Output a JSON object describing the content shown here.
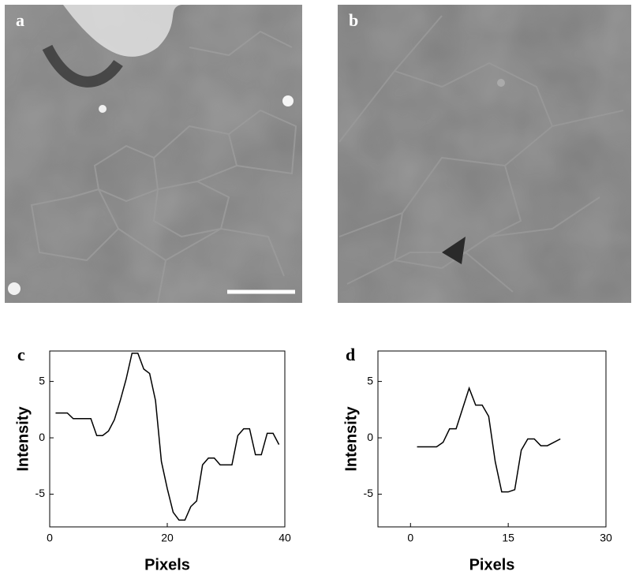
{
  "images": [
    {
      "label": "a"
    },
    {
      "label": "b"
    }
  ],
  "chart_data": [
    {
      "type": "line",
      "label": "c",
      "xlabel": "Pixels",
      "ylabel": "Intensity",
      "color": "#000000",
      "x": [
        1,
        2,
        3,
        4,
        5,
        6,
        7,
        8,
        9,
        10,
        11,
        12,
        13,
        14,
        15,
        16,
        17,
        18,
        19,
        20,
        21,
        22,
        23,
        24,
        25,
        26,
        27,
        28,
        29,
        30,
        31,
        32,
        33,
        34,
        35,
        36,
        37,
        38,
        39
      ],
      "values": [
        2.2,
        2.2,
        2.2,
        1.7,
        1.7,
        1.7,
        1.7,
        0.2,
        0.2,
        0.6,
        1.6,
        3.3,
        5.2,
        7.5,
        7.5,
        6.1,
        5.7,
        3.3,
        -2.1,
        -4.5,
        -6.6,
        -7.3,
        -7.3,
        -6.1,
        -5.6,
        -2.4,
        -1.8,
        -1.8,
        -2.4,
        -2.4,
        -2.4,
        0.2,
        0.8,
        0.8,
        -1.5,
        -1.5,
        0.4,
        0.4,
        -0.6
      ],
      "xlim": [
        0,
        40
      ],
      "ylim": [
        -7.9,
        7.7
      ],
      "xticks": [
        0,
        20,
        40
      ],
      "yticks": [
        -5,
        0,
        5
      ]
    },
    {
      "type": "line",
      "label": "d",
      "xlabel": "Pixels",
      "ylabel": "Intensity",
      "color": "#000000",
      "x": [
        1,
        2,
        3,
        4,
        5,
        6,
        7,
        8,
        9,
        10,
        11,
        12,
        13,
        14,
        15,
        16,
        17,
        18,
        19,
        20,
        21,
        22,
        23
      ],
      "values": [
        -0.8,
        -0.8,
        -0.8,
        -0.8,
        -0.4,
        0.8,
        0.8,
        2.6,
        4.4,
        2.9,
        2.9,
        1.9,
        -2.1,
        -4.8,
        -4.8,
        -4.6,
        -1.1,
        -0.1,
        -0.1,
        -0.7,
        -0.7,
        -0.4,
        -0.1
      ],
      "xlim": [
        -5,
        30
      ],
      "ylim": [
        -7.9,
        7.7
      ],
      "xticks": [
        0,
        15,
        30
      ],
      "yticks": [
        -5,
        0,
        5
      ]
    }
  ]
}
